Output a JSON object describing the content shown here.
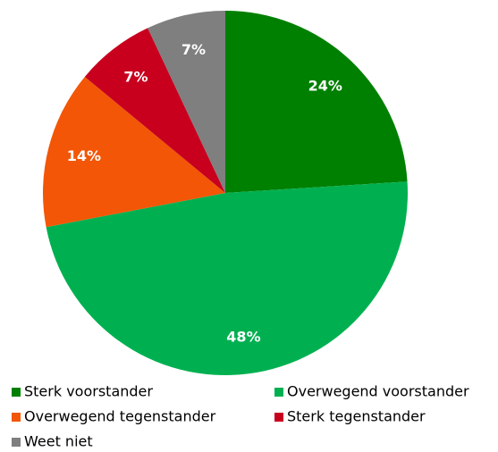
{
  "chart_data": {
    "type": "pie",
    "categories": [
      "Sterk voorstander",
      "Overwegend voorstander",
      "Overwegend tegenstander",
      "Sterk tegenstander",
      "Weet niet"
    ],
    "values": [
      24,
      48,
      14,
      7,
      7
    ],
    "value_labels": [
      "24%",
      "48%",
      "14%",
      "7%",
      "7%"
    ],
    "colors": [
      "#008000",
      "#00b050",
      "#f25606",
      "#c8001e",
      "#7f7f7f"
    ]
  }
}
